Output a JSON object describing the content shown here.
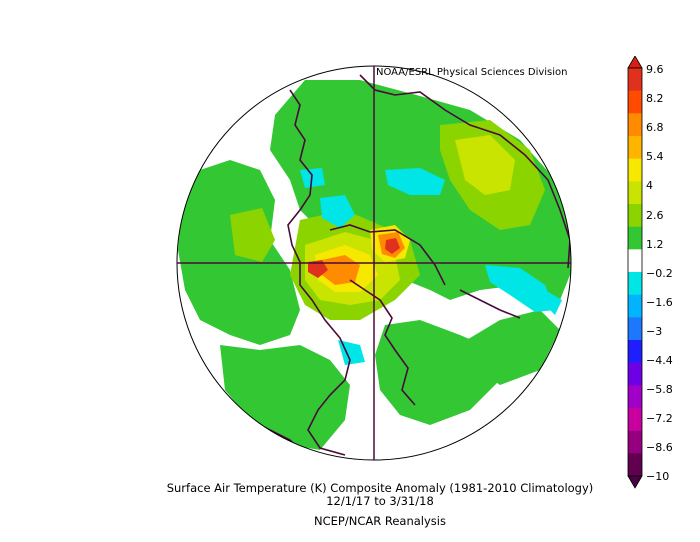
{
  "credit": "NOAA/ESRL Physical Sciences Division",
  "caption": {
    "line1": "Surface Air Temperature (K) Composite Anomaly (1981-2010 Climatology)",
    "line2": "12/1/17   to 3/31/18",
    "line3": "NCEP/NCAR Reanalysis"
  },
  "colorbar": {
    "ticks": [
      "9.6",
      "8.2",
      "6.8",
      "5.4",
      "4",
      "2.6",
      "1.2",
      "-0.2",
      "-1.6",
      "-3",
      "-4.4",
      "-5.8",
      "-7.2",
      "-8.6",
      "-10"
    ],
    "colors": [
      "#e0301e",
      "#ff4a00",
      "#ff8c00",
      "#ffb400",
      "#f7e800",
      "#c8e400",
      "#8cd400",
      "#33c833",
      "#ffffff",
      "#00e6e6",
      "#00b4ff",
      "#1e78ff",
      "#1e1eff",
      "#6e00e6",
      "#a000c8",
      "#c800a0",
      "#960080",
      "#60004e"
    ],
    "top_arrow_color": "#d82010",
    "bottom_arrow_color": "#4b0040"
  },
  "colors": {
    "land_anomaly": "#33c833",
    "warm_weak": "#8cd400",
    "warm": "#c8e400",
    "warm_yellow": "#f7e800",
    "warm_orange": "#ff8c00",
    "warm_strong": "#e0301e",
    "cool": "#00e6e6",
    "coastline": "#4a0a3a"
  }
}
